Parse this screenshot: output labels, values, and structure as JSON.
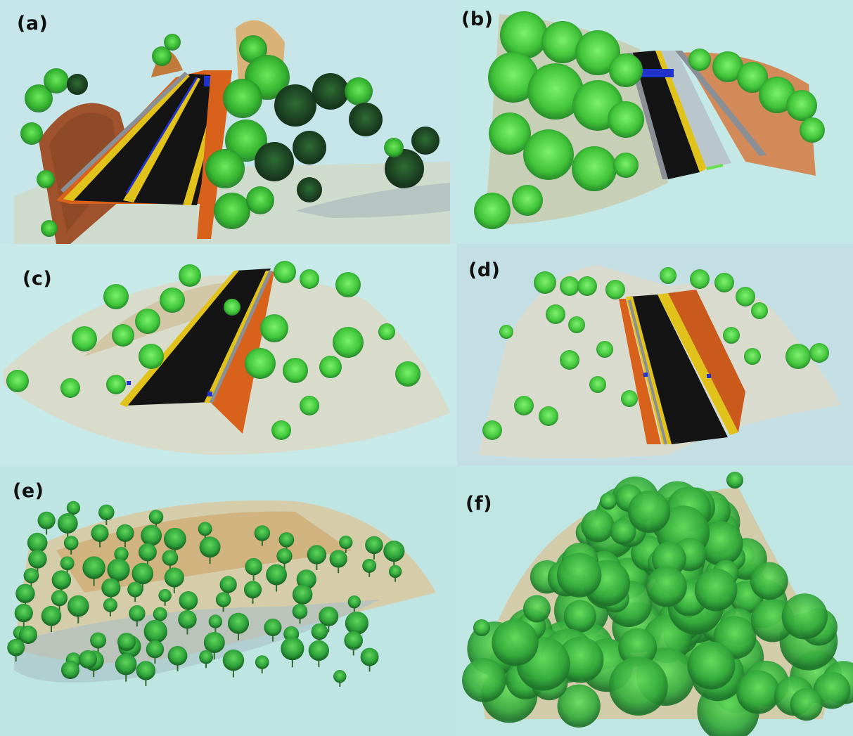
{
  "figure": {
    "panels": [
      {
        "id": "a",
        "label": "(a)"
      },
      {
        "id": "b",
        "label": "(b)"
      },
      {
        "id": "c",
        "label": "(c)"
      },
      {
        "id": "d",
        "label": "(d)"
      },
      {
        "id": "e",
        "label": "(e)"
      },
      {
        "id": "f",
        "label": "(f)"
      }
    ]
  },
  "colors": {
    "background": "#c3e6e6",
    "asphalt": "#141414",
    "lane_marking": "#e0c21b",
    "guardrail": "#8a8f96",
    "embankment": "#d8621c",
    "tree_green": "#3fcf3a",
    "dark_tree_green": "#1f7a2a",
    "ground_sand": "#d9c49a",
    "ground_gray": "#9fb0b8",
    "sign_blue": "#2233cc"
  }
}
